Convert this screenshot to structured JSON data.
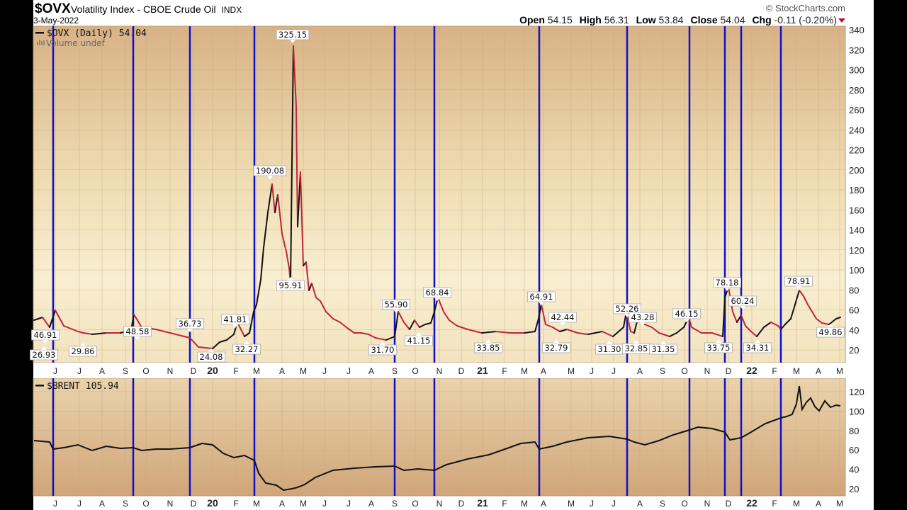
{
  "header": {
    "symbol": "$OVX",
    "name": "Volatility Index - CBOE Crude Oil",
    "exchange": "INDX",
    "date": "3-May-2022",
    "copyright": "© StockCharts.com",
    "ohlc": {
      "open_label": "Open",
      "open": "54.15",
      "high_label": "High",
      "high": "56.31",
      "low_label": "Low",
      "low": "53.84",
      "close_label": "Close",
      "close": "54.04",
      "chg_label": "Chg",
      "chg": "-0.11 (-0.20%)"
    }
  },
  "upper_panel": {
    "legend": "$OVX (Daily) 54.04",
    "volume_note": "Volume undef"
  },
  "lower_panel": {
    "legend": "$BRENT 105.94"
  },
  "colors": {
    "ovx_down": "#c0243a",
    "ovx_up": "#111111",
    "brent": "#111111",
    "vline": "#1010cc",
    "bg_top_upper": "#d9b48a",
    "bg_mid_upper": "#f7edce",
    "bg_lower_top": "#e8cfa8",
    "bg_lower_bottom": "#d1a77a"
  },
  "chart_data": [
    {
      "type": "line",
      "title": "$OVX Volatility Index - CBOE Crude Oil (Daily)",
      "xlabel": "",
      "ylabel": "",
      "ylim": [
        0,
        340
      ],
      "yticks": [
        20,
        40,
        60,
        80,
        100,
        120,
        140,
        160,
        180,
        200,
        220,
        240,
        260,
        280,
        300,
        320,
        340
      ],
      "grid": true,
      "x_tick_labels": [
        "J",
        "J",
        "A",
        "S",
        "O",
        "N",
        "D",
        "20",
        "F",
        "M",
        "A",
        "M",
        "J",
        "J",
        "A",
        "S",
        "O",
        "N",
        "D",
        "21",
        "F",
        "M",
        "A",
        "M",
        "J",
        "J",
        "A",
        "S",
        "O",
        "N",
        "D",
        "22",
        "F",
        "M",
        "A",
        "M"
      ],
      "annotations": [
        {
          "label": "26.93",
          "value": 26.93,
          "kind": "low"
        },
        {
          "label": "46.91",
          "value": 46.91,
          "kind": "high"
        },
        {
          "label": "29.86",
          "value": 29.86,
          "kind": "low"
        },
        {
          "label": "48.58",
          "value": 48.58,
          "kind": "high"
        },
        {
          "label": "36.73",
          "value": 36.73,
          "kind": "high"
        },
        {
          "label": "24.08",
          "value": 24.08,
          "kind": "low"
        },
        {
          "label": "41.81",
          "value": 41.81,
          "kind": "high"
        },
        {
          "label": "32.27",
          "value": 32.27,
          "kind": "low"
        },
        {
          "label": "190.08",
          "value": 190.08,
          "kind": "high"
        },
        {
          "label": "95.91",
          "value": 95.91,
          "kind": "low"
        },
        {
          "label": "325.15",
          "value": 325.15,
          "kind": "high"
        },
        {
          "label": "31.70",
          "value": 31.7,
          "kind": "low"
        },
        {
          "label": "55.90",
          "value": 55.9,
          "kind": "high"
        },
        {
          "label": "41.15",
          "value": 41.15,
          "kind": "low"
        },
        {
          "label": "68.84",
          "value": 68.84,
          "kind": "high"
        },
        {
          "label": "33.85",
          "value": 33.85,
          "kind": "low"
        },
        {
          "label": "64.91",
          "value": 64.91,
          "kind": "high"
        },
        {
          "label": "42.44",
          "value": 42.44,
          "kind": "high"
        },
        {
          "label": "32.79",
          "value": 32.79,
          "kind": "low"
        },
        {
          "label": "31.30",
          "value": 31.3,
          "kind": "low"
        },
        {
          "label": "52.26",
          "value": 52.26,
          "kind": "high"
        },
        {
          "label": "32.85",
          "value": 32.85,
          "kind": "low"
        },
        {
          "label": "43.28",
          "value": 43.28,
          "kind": "high"
        },
        {
          "label": "31.35",
          "value": 31.35,
          "kind": "low"
        },
        {
          "label": "46.15",
          "value": 46.15,
          "kind": "high"
        },
        {
          "label": "33.75",
          "value": 33.75,
          "kind": "low"
        },
        {
          "label": "78.18",
          "value": 78.18,
          "kind": "high"
        },
        {
          "label": "60.24",
          "value": 60.24,
          "kind": "high"
        },
        {
          "label": "34.31",
          "value": 34.31,
          "kind": "low"
        },
        {
          "label": "78.91",
          "value": 78.91,
          "kind": "high"
        },
        {
          "label": "49.86",
          "value": 49.86,
          "kind": "low"
        }
      ],
      "series": [
        {
          "name": "$OVX",
          "x": [
            "2019-05",
            "2019-06",
            "2019-07",
            "2019-08",
            "2019-09",
            "2019-10",
            "2019-11",
            "2019-12",
            "2020-01",
            "2020-02",
            "2020-03",
            "2020-03b",
            "2020-04",
            "2020-04b",
            "2020-05",
            "2020-06",
            "2020-07",
            "2020-08",
            "2020-09",
            "2020-10",
            "2020-11",
            "2020-12",
            "2021-01",
            "2021-02",
            "2021-03",
            "2021-04",
            "2021-05",
            "2021-06",
            "2021-07",
            "2021-08",
            "2021-09",
            "2021-10",
            "2021-11",
            "2021-12",
            "2022-01",
            "2022-02",
            "2022-03",
            "2022-04",
            "2022-05"
          ],
          "values": [
            30,
            44,
            35,
            33,
            46,
            38,
            36,
            30,
            26,
            38,
            50,
            190,
            150,
            325,
            110,
            60,
            40,
            32,
            52,
            45,
            62,
            42,
            36,
            37,
            60,
            38,
            36,
            35,
            45,
            36,
            33,
            42,
            35,
            75,
            38,
            45,
            78,
            52,
            54
          ]
        }
      ]
    },
    {
      "type": "line",
      "title": "$BRENT",
      "ylim": [
        10,
        130
      ],
      "yticks": [
        20,
        40,
        60,
        80,
        100,
        120
      ],
      "grid": true,
      "x_tick_labels": [
        "J",
        "J",
        "A",
        "S",
        "O",
        "N",
        "D",
        "20",
        "F",
        "M",
        "A",
        "M",
        "J",
        "J",
        "A",
        "S",
        "O",
        "N",
        "D",
        "21",
        "F",
        "M",
        "A",
        "M",
        "J",
        "J",
        "A",
        "S",
        "O",
        "N",
        "D",
        "22",
        "F",
        "M",
        "A",
        "M"
      ],
      "series": [
        {
          "name": "$BRENT",
          "x": [
            "2019-05",
            "2019-06",
            "2019-07",
            "2019-08",
            "2019-09",
            "2019-10",
            "2019-11",
            "2019-12",
            "2020-01",
            "2020-02",
            "2020-03",
            "2020-04",
            "2020-05",
            "2020-06",
            "2020-07",
            "2020-08",
            "2020-09",
            "2020-10",
            "2020-11",
            "2020-12",
            "2021-01",
            "2021-02",
            "2021-03",
            "2021-04",
            "2021-05",
            "2021-06",
            "2021-07",
            "2021-08",
            "2021-09",
            "2021-10",
            "2021-11",
            "2021-12",
            "2022-01",
            "2022-02",
            "2022-03",
            "2022-04",
            "2022-05"
          ],
          "values": [
            70,
            62,
            63,
            58,
            61,
            58,
            62,
            66,
            60,
            52,
            30,
            22,
            33,
            41,
            43,
            45,
            41,
            40,
            45,
            51,
            55,
            63,
            66,
            63,
            68,
            73,
            74,
            70,
            75,
            84,
            80,
            75,
            88,
            98,
            120,
            105,
            106
          ]
        }
      ]
    }
  ]
}
